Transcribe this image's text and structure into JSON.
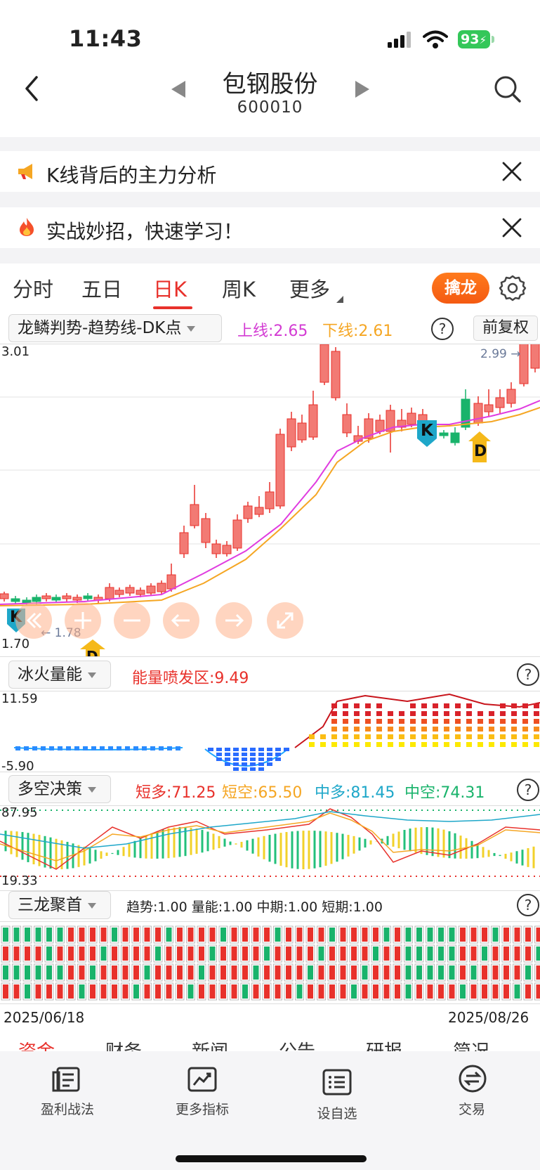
{
  "status_bar": {
    "time": "11:43",
    "battery": "93"
  },
  "header": {
    "stock_name": "包钢股份",
    "stock_code": "600010"
  },
  "banners": [
    {
      "text": "K线背后的主力分析",
      "icon": "megaphone-icon"
    },
    {
      "text": "实战妙招，快速学习！",
      "icon": "fire-icon"
    }
  ],
  "period_tabs": {
    "items": [
      "分时",
      "五日",
      "日K",
      "周K",
      "更多"
    ],
    "active": "日K",
    "action_button": "擒龙"
  },
  "main_chart": {
    "indicator_name": "龙鳞判势-趋势线-DK点",
    "upper_line_label": "上线:2.65",
    "lower_line_label": "下线:2.61",
    "adjust_button": "前复权",
    "y_max_label": "3.01",
    "y_min_label": "1.70",
    "high_marker": "2.99",
    "low_marker": "1.78",
    "signal_k": "K",
    "signal_d": "D"
  },
  "volume_panel": {
    "indicator_name": "冰火量能",
    "value_label": "能量喷发区:9.49",
    "y_max_label": "11.59",
    "y_min_label": "-5.90"
  },
  "decision_panel": {
    "indicator_name": "多空决策",
    "values": [
      {
        "label": "短多:71.25",
        "color": "#e8312b"
      },
      {
        "label": "短空:65.50",
        "color": "#f5a623"
      },
      {
        "label": "中多:81.45",
        "color": "#1ea7c9"
      },
      {
        "label": "中空:74.31",
        "color": "#19b36b"
      }
    ],
    "y_max_label": "87.95",
    "y_min_label": "19.33"
  },
  "sanlong_panel": {
    "indicator_name": "三龙聚首",
    "values_label": "趋势:1.00 量能:1.00 中期:1.00 短期:1.00"
  },
  "date_range": {
    "start": "2025/06/18",
    "end": "2025/08/26"
  },
  "bottom_tabs_peek": [
    "资金",
    "财务",
    "新闻",
    "公告",
    "研报",
    "简况"
  ],
  "bottom_nav": [
    {
      "label": "盈利战法",
      "icon": "document-icon"
    },
    {
      "label": "更多指标",
      "icon": "chart-icon"
    },
    {
      "label": "设自选",
      "icon": "list-icon"
    },
    {
      "label": "交易",
      "icon": "exchange-icon"
    }
  ],
  "colors": {
    "up": "#e8312b",
    "down": "#19b36b",
    "accent": "#f45a12",
    "ma1": "#e03ce0",
    "ma2": "#f5a623"
  }
}
